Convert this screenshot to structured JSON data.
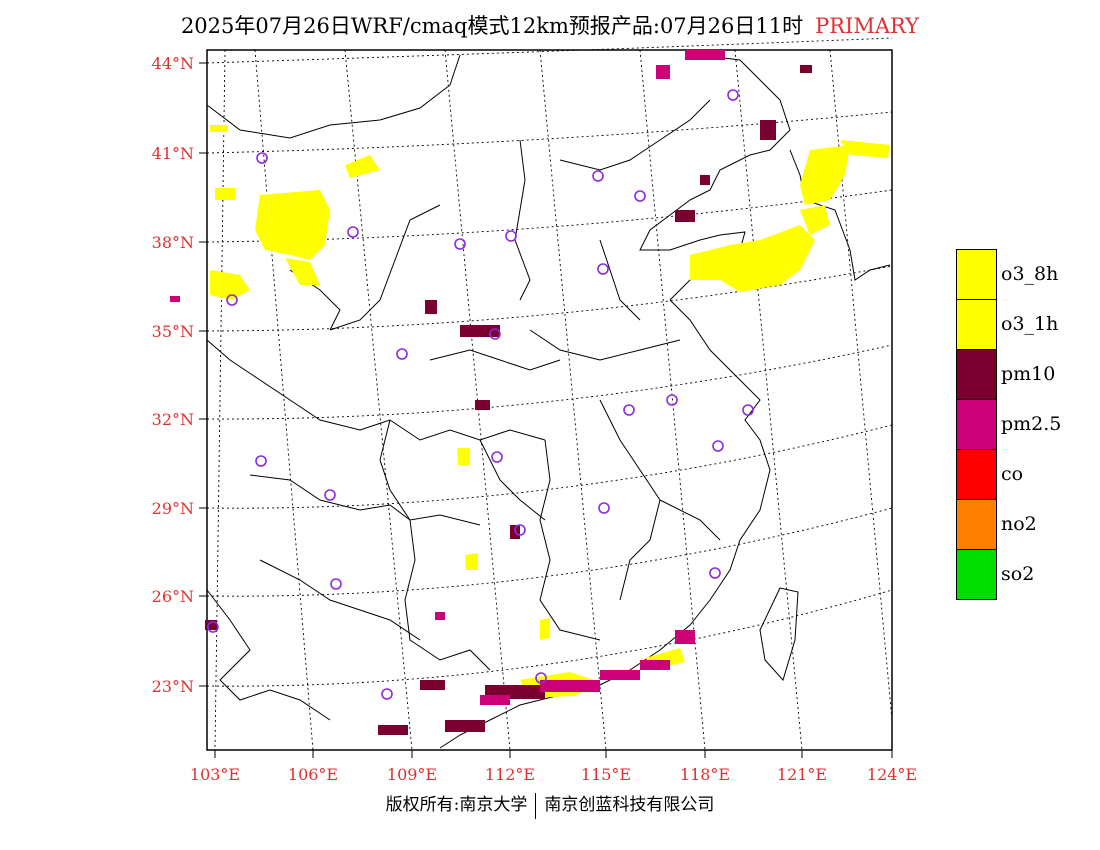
{
  "header": {
    "title": "2025年07月26日WRF/cmaq模式12km预报产品:07月26日11时",
    "tag": "PRIMARY"
  },
  "axes": {
    "lat_labels": [
      "44°N",
      "41°N",
      "38°N",
      "35°N",
      "32°N",
      "29°N",
      "26°N",
      "23°N"
    ],
    "lon_labels": [
      "103°E",
      "106°E",
      "109°E",
      "112°E",
      "115°E",
      "118°E",
      "121°E",
      "124°E"
    ]
  },
  "legend": {
    "items": [
      {
        "label": "o3_8h",
        "color": "#ffff00"
      },
      {
        "label": "o3_1h",
        "color": "#ffff00"
      },
      {
        "label": "pm10",
        "color": "#7a0030"
      },
      {
        "label": "pm2.5",
        "color": "#cc0077"
      },
      {
        "label": "co",
        "color": "#ff0000"
      },
      {
        "label": "no2",
        "color": "#ff7f00"
      },
      {
        "label": "so2",
        "color": "#00dd00"
      }
    ]
  },
  "footer": {
    "left": "版权所有:南京大学",
    "right": "南京创蓝科技有限公司"
  },
  "colors": {
    "o3": "#ffff00",
    "pm10": "#7a0030",
    "pm25": "#cc0077",
    "station": "#8a2be2",
    "axis_label": "#e03030"
  }
}
